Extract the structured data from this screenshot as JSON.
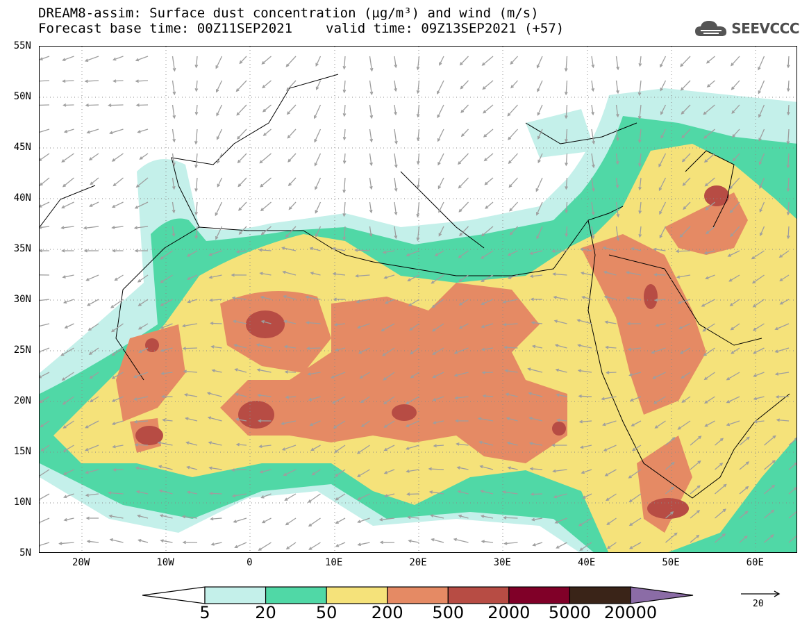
{
  "header": {
    "title_line1": "DREAM8-assim: Surface dust concentration (µg/m³) and wind (m/s)",
    "base_time": "Forecast base time: 00Z11SEP2021",
    "valid_time": "valid time: 09Z13SEP2021 (+57)"
  },
  "logo": {
    "text": "SEEVCCC",
    "icon": "cloud-icon"
  },
  "map": {
    "lon_range": [
      -25,
      65
    ],
    "lat_range": [
      5,
      55
    ],
    "lat_labels": [
      "55N",
      "50N",
      "45N",
      "40N",
      "35N",
      "30N",
      "25N",
      "20N",
      "15N",
      "10N",
      "5N"
    ],
    "lon_labels": [
      "20W",
      "10W",
      "0",
      "10E",
      "20E",
      "30E",
      "40E",
      "50E",
      "60E"
    ],
    "grid": "dotted"
  },
  "colorbar": {
    "labels": [
      "5",
      "20",
      "50",
      "200",
      "500",
      "2000",
      "5000",
      "20000"
    ],
    "colors": [
      "#c4f0ea",
      "#50d8a6",
      "#f5e27a",
      "#e58a64",
      "#b74c44",
      "#800028",
      "#3a2418",
      "#8b6ca6"
    ]
  },
  "wind_reference": {
    "label": "20",
    "icon": "arrow-right-icon"
  }
}
